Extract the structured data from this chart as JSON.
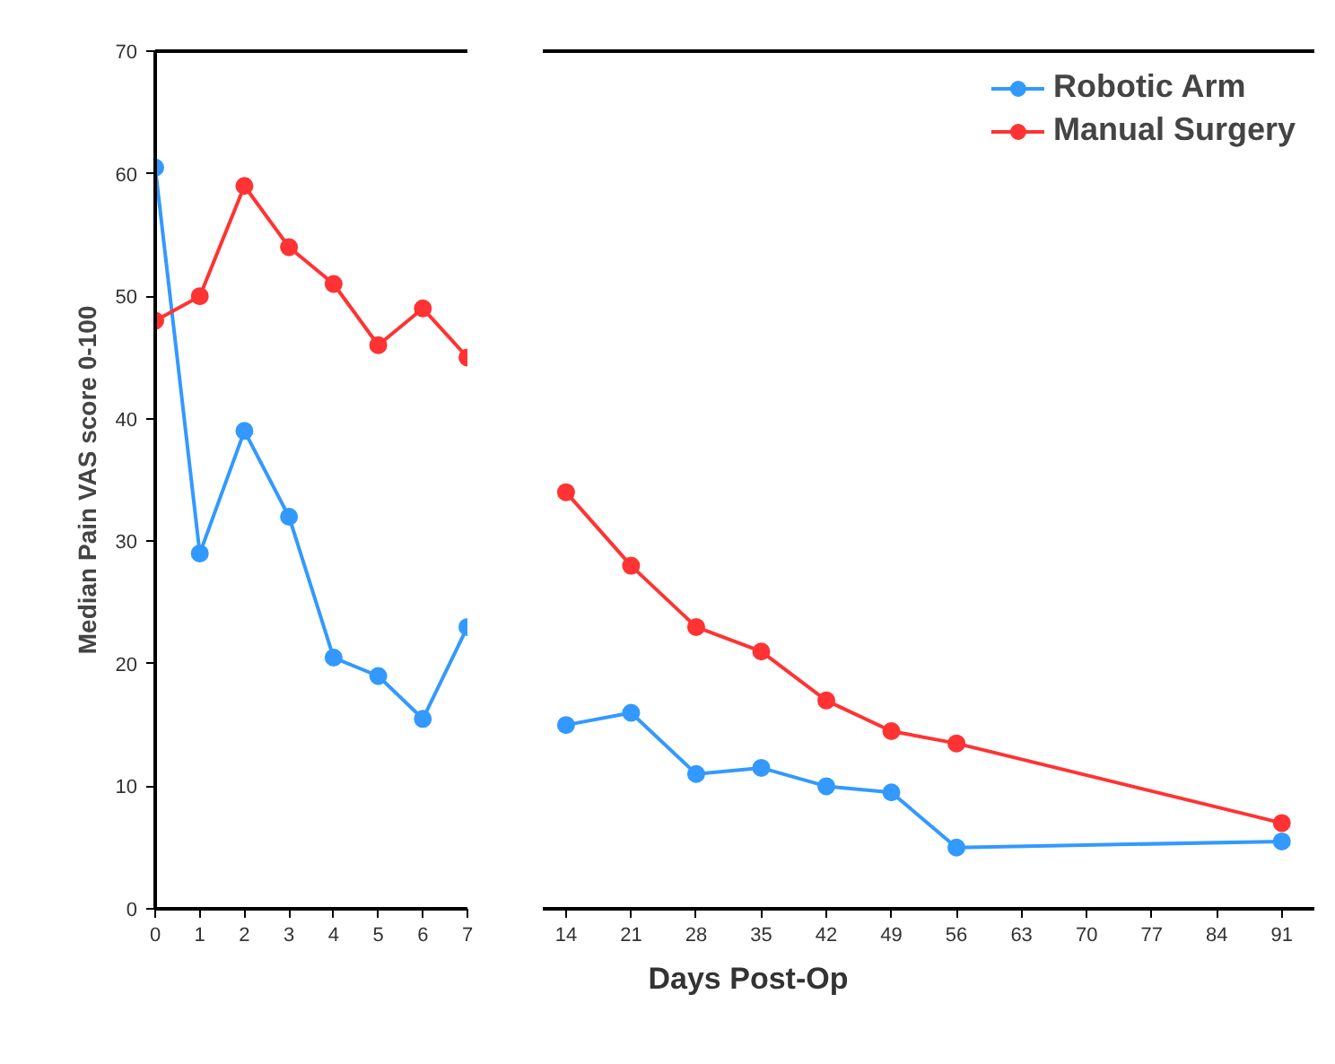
{
  "chart_data": [
    {
      "type": "line",
      "ylabel": "Median Pain VAS score 0-100",
      "x": [
        0,
        1,
        2,
        3,
        4,
        5,
        6,
        7
      ],
      "xlim": [
        0,
        7
      ],
      "xticks": [
        0,
        1,
        2,
        3,
        4,
        5,
        6,
        7
      ],
      "ylim": [
        0,
        70
      ],
      "yticks": [
        0,
        10,
        20,
        30,
        40,
        50,
        60,
        70
      ],
      "grid": false,
      "legend": false,
      "marker": "circle",
      "line_style": "solid",
      "series": [
        {
          "color": "#3399ff",
          "values": [
            60.5,
            29,
            39,
            32,
            20.5,
            19,
            15.5,
            23
          ]
        },
        {
          "color": "#ff3333",
          "values": [
            48,
            50,
            59,
            54,
            51,
            46,
            49,
            45
          ]
        }
      ]
    },
    {
      "type": "line",
      "xlabel": "Days Post-Op",
      "x": [
        14,
        21,
        28,
        35,
        42,
        49,
        56,
        91
      ],
      "xlim": [
        11.5,
        94.5
      ],
      "xticks": [
        14,
        21,
        28,
        35,
        42,
        49,
        56,
        63,
        70,
        77,
        84,
        91
      ],
      "ylim": [
        0,
        70
      ],
      "tick_labels": "x",
      "grid": false,
      "legend": "top right",
      "marker": "circle",
      "line_style": "solid",
      "series": [
        {
          "name": "Robotic Arm",
          "color": "#3399ff",
          "values": [
            15,
            16,
            11,
            11.5,
            10,
            9.5,
            5,
            5.5
          ]
        },
        {
          "name": "Manual Surgery",
          "color": "#ff3333",
          "values": [
            34,
            28,
            23,
            21,
            17,
            14.5,
            13.5,
            7
          ]
        }
      ]
    }
  ]
}
